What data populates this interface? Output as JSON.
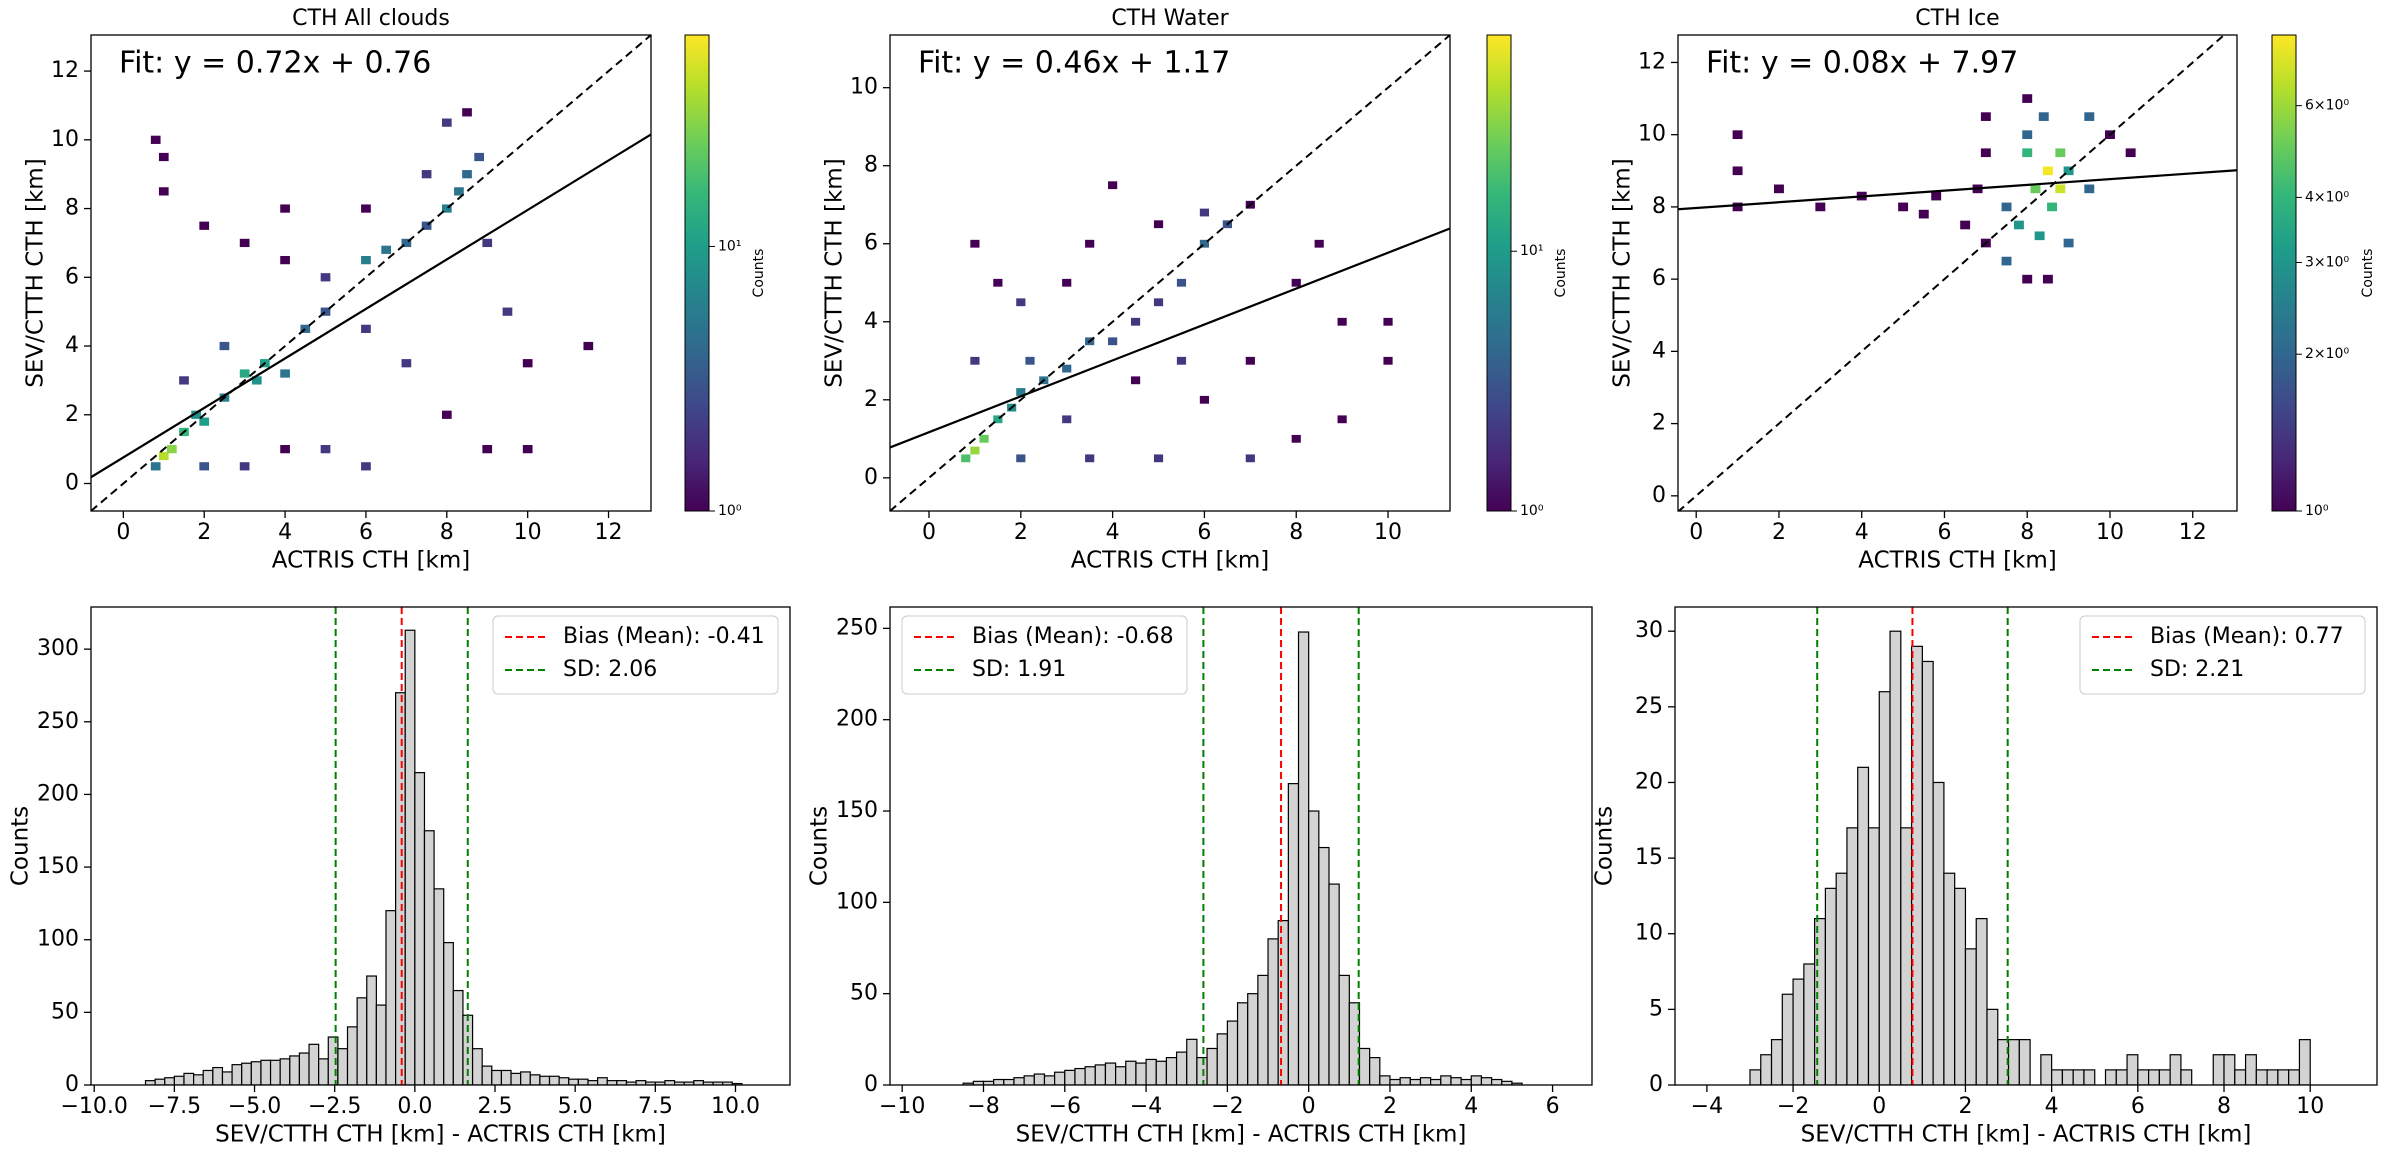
{
  "chart_data": [
    {
      "type": "heatmap",
      "title": "CTH All clouds",
      "xlabel": "ACTRIS CTH [km]",
      "ylabel": "SEV/CTTH CTH [km]",
      "xlim": [
        -0.8,
        13.05
      ],
      "ylim": [
        -0.8,
        13.05
      ],
      "xticks": [
        0,
        2,
        4,
        6,
        8,
        10,
        12
      ],
      "yticks": [
        0,
        2,
        4,
        6,
        8,
        10,
        12
      ],
      "identity_line": true,
      "cmap": "viridis",
      "fit": {
        "label": "Fit: y = 0.72x + 0.76",
        "slope": 0.72,
        "intercept": 0.76
      },
      "colorbar": {
        "label": "Counts",
        "scale": "log",
        "lim": [
          1,
          63
        ],
        "ticks": [
          {
            "value": 1,
            "label": "10⁰"
          },
          {
            "value": 10,
            "label": "10¹"
          }
        ]
      },
      "cells": {
        "x": [
          1,
          1.2,
          1.5,
          1.8,
          2,
          2.5,
          3,
          3.5,
          3.3,
          4,
          4.5,
          5,
          6,
          6.5,
          7,
          7.5,
          8,
          8.3,
          8.5,
          8.8,
          8,
          8.5,
          1,
          1,
          2,
          3,
          4,
          5,
          6,
          7,
          8,
          9,
          10,
          11.5,
          10,
          9.5,
          2,
          3,
          4,
          5,
          6,
          2.5,
          1.5,
          0.8,
          9,
          7.5,
          6,
          4,
          0.8
        ],
        "y": [
          0.8,
          1,
          1.5,
          2,
          1.8,
          2.5,
          3.2,
          3.5,
          3,
          3.2,
          4.5,
          5,
          6.5,
          6.8,
          7,
          7.5,
          8,
          8.5,
          9,
          9.5,
          10.5,
          10.8,
          9.5,
          8.5,
          7.5,
          7,
          6.5,
          6,
          4.5,
          3.5,
          2,
          1,
          1,
          4,
          3.5,
          5,
          0.5,
          0.5,
          1,
          1,
          0.5,
          4,
          3,
          0.5,
          7,
          9,
          8,
          8,
          10
        ],
        "counts": [
          40,
          30,
          15,
          8,
          10,
          6,
          12,
          10,
          8,
          5,
          4,
          3,
          6,
          5,
          4,
          3,
          6,
          5,
          4,
          3,
          2,
          1,
          1,
          1,
          1,
          1,
          1,
          2,
          2,
          2,
          1,
          1,
          1,
          1,
          1,
          2,
          3,
          2,
          1,
          2,
          2,
          3,
          2,
          5,
          2,
          2,
          1,
          1,
          1
        ]
      }
    },
    {
      "type": "heatmap",
      "title": "CTH Water",
      "xlabel": "ACTRIS CTH [km]",
      "ylabel": "SEV/CTTH CTH [km]",
      "xlim": [
        -0.85,
        11.35
      ],
      "ylim": [
        -0.85,
        11.35
      ],
      "xticks": [
        0,
        2,
        4,
        6,
        8,
        10
      ],
      "yticks": [
        0,
        2,
        4,
        6,
        8,
        10
      ],
      "identity_line": true,
      "cmap": "viridis",
      "fit": {
        "label": "Fit: y = 0.46x + 1.17",
        "slope": 0.46,
        "intercept": 1.17
      },
      "colorbar": {
        "label": "Counts",
        "scale": "log",
        "lim": [
          1,
          68
        ],
        "ticks": [
          {
            "value": 1,
            "label": "10⁰"
          },
          {
            "value": 10,
            "label": "10¹"
          }
        ]
      },
      "cells": {
        "x": [
          0.8,
          1,
          1.2,
          1.5,
          1.8,
          2,
          2.5,
          3,
          2.2,
          3.5,
          4,
          4.5,
          5,
          5.5,
          6,
          6.5,
          6,
          7,
          4,
          1,
          1.5,
          2,
          3,
          3.5,
          5,
          8,
          9,
          10,
          10,
          9,
          8,
          7,
          5,
          3.5,
          2,
          6,
          7,
          8.5,
          1,
          3,
          4.5,
          5.5
        ],
        "y": [
          0.5,
          0.7,
          1,
          1.5,
          1.8,
          2.2,
          2.5,
          2.8,
          3,
          3.5,
          3.5,
          4,
          4.5,
          5,
          6,
          6.5,
          6.8,
          7,
          7.5,
          6,
          5,
          4.5,
          5,
          6,
          6.5,
          5,
          4,
          4,
          3,
          1.5,
          1,
          0.5,
          0.5,
          0.5,
          0.5,
          2,
          3,
          6,
          3,
          1.5,
          2.5,
          3
        ],
        "counts": [
          20,
          35,
          25,
          12,
          8,
          6,
          5,
          4,
          3,
          4,
          3,
          2,
          2,
          3,
          4,
          3,
          2,
          1,
          1,
          1,
          1,
          2,
          1,
          1,
          1,
          1,
          1,
          1,
          1,
          1,
          1,
          2,
          2,
          2,
          3,
          1,
          1,
          1,
          2,
          2,
          1,
          2
        ]
      }
    },
    {
      "type": "heatmap",
      "title": "CTH Ice",
      "xlabel": "ACTRIS CTH [km]",
      "ylabel": "SEV/CTTH CTH [km]",
      "xlim": [
        -0.44,
        13.07
      ],
      "ylim": [
        -0.42,
        12.76
      ],
      "xticks": [
        0,
        2,
        4,
        6,
        8,
        10,
        12
      ],
      "yticks": [
        0,
        2,
        4,
        6,
        8,
        10,
        12
      ],
      "identity_line": true,
      "cmap": "viridis",
      "fit": {
        "label": "Fit: y = 0.08x + 7.97",
        "slope": 0.08,
        "intercept": 7.97
      },
      "colorbar": {
        "label": "Counts",
        "scale": "log",
        "lim": [
          1,
          8.2
        ],
        "ticks": [
          {
            "value": 1,
            "label": "10⁰"
          },
          {
            "value": 2,
            "label": "2×10⁰"
          },
          {
            "value": 3,
            "label": "3×10⁰"
          },
          {
            "value": 4,
            "label": "4×10⁰"
          },
          {
            "value": 6,
            "label": "6×10⁰"
          }
        ]
      },
      "cells": {
        "x": [
          8.5,
          8.8,
          8.2,
          8,
          8.6,
          7.8,
          8.3,
          7.5,
          9,
          8,
          7,
          8,
          9.5,
          10.5,
          10,
          9.5,
          7,
          7.5,
          8,
          8.5,
          6.5,
          6.8,
          1,
          1,
          1,
          2,
          3,
          4,
          5,
          5.5,
          5.8,
          7,
          9,
          8.8,
          8.4
        ],
        "y": [
          9,
          8.5,
          8.5,
          9.5,
          8,
          7.5,
          7.2,
          8,
          9,
          10,
          10.5,
          11,
          10.5,
          9.5,
          10,
          8.5,
          7,
          6.5,
          6,
          6,
          7.5,
          8.5,
          10,
          9,
          8,
          8.5,
          8,
          8.3,
          8,
          7.8,
          8.3,
          9.5,
          7,
          9.5,
          10.5
        ],
        "counts": [
          8,
          7,
          5,
          4,
          4,
          3,
          3,
          2,
          3,
          2,
          1,
          1,
          2,
          1,
          1,
          2,
          1,
          2,
          1,
          1,
          1,
          1,
          1,
          1,
          1,
          1,
          1,
          1,
          1,
          1,
          1,
          1,
          2,
          5,
          2
        ]
      }
    },
    {
      "type": "histogram",
      "xlabel": "SEV/CTTH CTH [km] - ACTRIS CTH [km]",
      "ylabel": "Counts",
      "color": "#d3d3d3",
      "edgecolor": "#000000",
      "legend": "upper right",
      "xlim": [
        -10.1,
        11.7
      ],
      "ylim": [
        0,
        329
      ],
      "xticks": [
        {
          "value": -10,
          "label": "−10.0"
        },
        {
          "value": -7.5,
          "label": "−7.5"
        },
        {
          "value": -5,
          "label": "−5.0"
        },
        {
          "value": -2.5,
          "label": "−2.5"
        },
        {
          "value": 0,
          "label": "0.0"
        },
        2.5,
        {
          "value": 5,
          "label": "5.0"
        },
        7.5,
        {
          "value": 10,
          "label": "10.0"
        }
      ],
      "yticks": [
        0,
        50,
        100,
        150,
        200,
        250,
        300
      ],
      "bins": [
        -8.4,
        -8.1,
        -7.8,
        -7.5,
        -7.2,
        -6.9,
        -6.6,
        -6.3,
        -6.0,
        -5.7,
        -5.4,
        -5.1,
        -4.8,
        -4.5,
        -4.2,
        -3.9,
        -3.6,
        -3.3,
        -3.0,
        -2.7,
        -2.4,
        -2.1,
        -1.8,
        -1.5,
        -1.2,
        -0.9,
        -0.6,
        -0.3,
        0,
        0.3,
        0.6,
        0.9,
        1.2,
        1.5,
        1.8,
        2.1,
        2.4,
        2.7,
        3.0,
        3.3,
        3.6,
        3.9,
        4.2,
        4.5,
        4.8,
        5.1,
        5.4,
        5.7,
        6.0,
        6.3,
        6.6,
        6.9,
        7.2,
        7.5,
        7.8,
        8.1,
        8.4,
        8.7,
        9.0,
        9.3,
        9.6,
        9.9,
        10.2
      ],
      "counts": [
        3,
        4,
        5,
        6,
        8,
        7,
        10,
        12,
        9,
        14,
        15,
        16,
        17,
        17,
        18,
        20,
        22,
        28,
        18,
        33,
        25,
        40,
        60,
        75,
        55,
        120,
        270,
        313,
        215,
        175,
        135,
        98,
        65,
        48,
        25,
        13,
        10,
        10,
        8,
        9,
        7,
        6,
        6,
        5,
        4,
        4,
        3,
        5,
        3,
        3,
        2,
        3,
        2,
        2,
        3,
        2,
        2,
        3,
        2,
        2,
        2,
        1
      ],
      "mean": {
        "label": "Bias (Mean): -0.41",
        "value": -0.41,
        "color": "#ff0000"
      },
      "sd": {
        "label": "SD: 2.06",
        "value": 2.06,
        "color": "#008000"
      }
    },
    {
      "type": "histogram",
      "xlabel": "SEV/CTTH CTH [km] - ACTRIS CTH [km]",
      "ylabel": "Counts",
      "color": "#d3d3d3",
      "edgecolor": "#000000",
      "legend": "upper left",
      "xlim": [
        -10.3,
        6.97
      ],
      "ylim": [
        0,
        261.7
      ],
      "xticks": [
        {
          "value": -10,
          "label": "−10"
        },
        {
          "value": -8,
          "label": "−8"
        },
        {
          "value": -6,
          "label": "−6"
        },
        {
          "value": -4,
          "label": "−4"
        },
        {
          "value": -2,
          "label": "−2"
        },
        0,
        2,
        4,
        6
      ],
      "yticks": [
        0,
        50,
        100,
        150,
        200,
        250
      ],
      "bins": [
        -8.5,
        -8.25,
        -8,
        -7.75,
        -7.5,
        -7.25,
        -7,
        -6.75,
        -6.5,
        -6.25,
        -6,
        -5.75,
        -5.5,
        -5.25,
        -5,
        -4.75,
        -4.5,
        -4.25,
        -4,
        -3.75,
        -3.5,
        -3.25,
        -3,
        -2.75,
        -2.5,
        -2.25,
        -2,
        -1.75,
        -1.5,
        -1.25,
        -1,
        -0.75,
        -0.5,
        -0.25,
        0,
        0.25,
        0.5,
        0.75,
        1,
        1.25,
        1.5,
        1.75,
        2,
        2.25,
        2.5,
        2.75,
        3,
        3.25,
        3.5,
        3.75,
        4,
        4.25,
        4.5,
        4.75,
        5,
        5.25
      ],
      "counts": [
        1,
        2,
        2,
        3,
        3,
        4,
        5,
        6,
        5,
        7,
        8,
        9,
        10,
        11,
        12,
        10,
        13,
        12,
        14,
        13,
        15,
        18,
        25,
        15,
        20,
        28,
        35,
        45,
        50,
        60,
        80,
        90,
        165,
        248,
        150,
        130,
        110,
        60,
        45,
        20,
        15,
        5,
        3,
        4,
        3,
        4,
        3,
        5,
        4,
        3,
        5,
        4,
        3,
        2,
        1
      ],
      "mean": {
        "label": "Bias (Mean): -0.68",
        "value": -0.68,
        "color": "#ff0000"
      },
      "sd": {
        "label": "SD: 1.91",
        "value": 1.91,
        "color": "#008000"
      }
    },
    {
      "type": "histogram",
      "xlabel": "SEV/CTTH CTH [km] - ACTRIS CTH [km]",
      "ylabel": "Counts",
      "color": "#d3d3d3",
      "edgecolor": "#000000",
      "legend": "upper right",
      "xlim": [
        -4.74,
        11.55
      ],
      "ylim": [
        0,
        31.6
      ],
      "xticks": [
        {
          "value": -4,
          "label": "−4"
        },
        {
          "value": -2,
          "label": "−2"
        },
        0,
        2,
        4,
        6,
        8,
        10
      ],
      "yticks": [
        0,
        5,
        10,
        15,
        20,
        25,
        30
      ],
      "bins": [
        -3,
        -2.75,
        -2.5,
        -2.25,
        -2,
        -1.75,
        -1.5,
        -1.25,
        -1,
        -0.75,
        -0.5,
        -0.25,
        0,
        0.25,
        0.5,
        0.75,
        1,
        1.25,
        1.5,
        1.75,
        2,
        2.25,
        2.5,
        2.75,
        3,
        3.25,
        3.5,
        3.75,
        4,
        4.25,
        4.5,
        4.75,
        5,
        5.25,
        5.5,
        5.75,
        6,
        6.25,
        6.5,
        6.75,
        7,
        7.25,
        7.5,
        7.75,
        8,
        8.25,
        8.5,
        8.75,
        9,
        9.25,
        9.5,
        9.75,
        10
      ],
      "counts": [
        1,
        2,
        3,
        6,
        7,
        8,
        11,
        13,
        14,
        17,
        21,
        17,
        26,
        30,
        17,
        29,
        28,
        20,
        14,
        13,
        9,
        11,
        5,
        3,
        3,
        3,
        0,
        2,
        1,
        1,
        1,
        1,
        0,
        1,
        1,
        2,
        1,
        1,
        1,
        2,
        1,
        0,
        0,
        2,
        2,
        1,
        2,
        1,
        1,
        1,
        1,
        3
      ],
      "mean": {
        "label": "Bias (Mean): 0.77",
        "value": 0.77,
        "color": "#ff0000"
      },
      "sd": {
        "label": "SD: 2.21",
        "value": 2.21,
        "color": "#008000"
      }
    }
  ]
}
